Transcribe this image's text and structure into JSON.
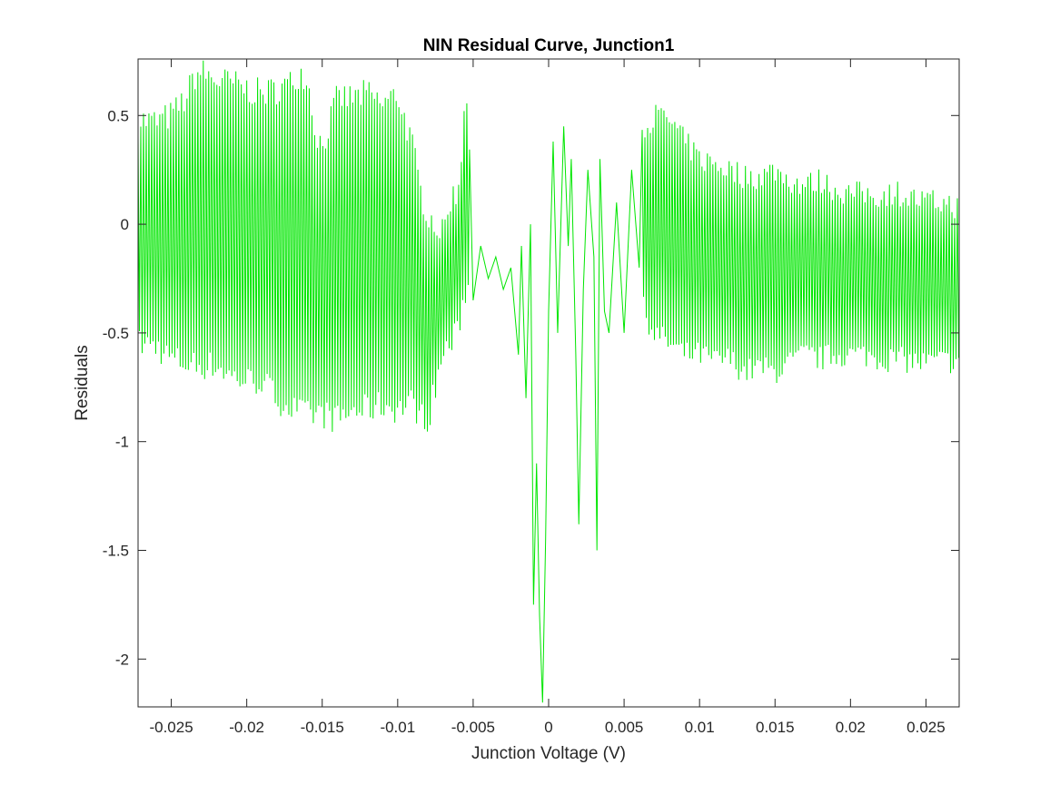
{
  "chart_data": {
    "type": "line",
    "title": "NIN Residual Curve, Junction1",
    "xlabel": "Junction Voltage (V)",
    "ylabel": "Residuals",
    "xlim": [
      -0.0272,
      0.0272
    ],
    "ylim": [
      -2.22,
      0.76
    ],
    "xticks": [
      -0.025,
      -0.02,
      -0.015,
      -0.01,
      -0.005,
      0,
      0.005,
      0.01,
      0.015,
      0.02,
      0.025
    ],
    "xtick_labels": [
      "-0.025",
      "-0.02",
      "-0.015",
      "-0.01",
      "-0.005",
      "0",
      "0.005",
      "0.01",
      "0.015",
      "0.02",
      "0.025"
    ],
    "yticks": [
      0.5,
      0,
      -0.5,
      -1,
      -1.5,
      -2
    ],
    "ytick_labels": [
      "0.5",
      "0",
      "-0.5",
      "-1",
      "-1.5",
      "-2"
    ],
    "grid": false,
    "box": true,
    "series": [
      {
        "color": "#00e600",
        "upper_envelope": {
          "x": [
            -0.0272,
            -0.026,
            -0.025,
            -0.024,
            -0.0235,
            -0.023,
            -0.022,
            -0.021,
            -0.02,
            -0.019,
            -0.018,
            -0.017,
            -0.0165,
            -0.016,
            -0.0155,
            -0.015,
            -0.0145,
            -0.014,
            -0.013,
            -0.012,
            -0.011,
            -0.01,
            -0.009,
            -0.0085,
            -0.008,
            -0.0075,
            -0.007,
            -0.0065,
            -0.006,
            -0.0058,
            -0.0055,
            -0.005
          ],
          "y": [
            0.48,
            0.47,
            0.5,
            0.58,
            0.68,
            0.7,
            0.66,
            0.65,
            0.62,
            0.6,
            0.62,
            0.65,
            0.7,
            0.68,
            0.45,
            0.35,
            0.47,
            0.58,
            0.58,
            0.6,
            0.55,
            0.6,
            0.35,
            0.15,
            0.05,
            0.0,
            -0.05,
            0.12,
            0.15,
            0.3,
            0.7,
            0.0
          ]
        },
        "lower_envelope": {
          "x": [
            -0.0272,
            -0.026,
            -0.025,
            -0.024,
            -0.023,
            -0.022,
            -0.021,
            -0.02,
            -0.019,
            -0.018,
            -0.017,
            -0.016,
            -0.015,
            -0.014,
            -0.013,
            -0.012,
            -0.011,
            -0.01,
            -0.009,
            -0.0085,
            -0.008,
            -0.0075,
            -0.007,
            -0.0065,
            -0.006,
            -0.0058,
            -0.0055,
            -0.005
          ],
          "y": [
            -0.55,
            -0.56,
            -0.62,
            -0.64,
            -0.65,
            -0.65,
            -0.7,
            -0.72,
            -0.72,
            -0.8,
            -0.85,
            -0.88,
            -0.87,
            -0.9,
            -0.86,
            -0.85,
            -0.83,
            -0.85,
            -0.82,
            -0.88,
            -0.9,
            -0.75,
            -0.6,
            -0.55,
            -0.5,
            -0.4,
            -0.3,
            -0.3
          ]
        },
        "center": {
          "x": [
            -0.005,
            -0.0045,
            -0.004,
            -0.0035,
            -0.003,
            -0.0025,
            -0.002,
            -0.0018,
            -0.0015,
            -0.0012,
            -0.001,
            -0.0008,
            -0.0006,
            -0.0004,
            -0.0002,
            0.0,
            0.0003,
            0.0006,
            0.001,
            0.0013,
            0.0015,
            0.0018,
            0.002,
            0.0023,
            0.0026,
            0.003,
            0.0032,
            0.0034,
            0.0037,
            0.004,
            0.0045,
            0.005,
            0.0055,
            0.006
          ],
          "y": [
            -0.35,
            -0.1,
            -0.25,
            -0.15,
            -0.3,
            -0.2,
            -0.6,
            -0.1,
            -0.8,
            0.0,
            -1.75,
            -1.1,
            -1.8,
            -2.2,
            -1.45,
            -0.4,
            0.38,
            -0.5,
            0.45,
            -0.1,
            0.3,
            -0.6,
            -1.38,
            -0.3,
            0.25,
            -0.15,
            -1.5,
            0.3,
            -0.4,
            -0.5,
            0.1,
            -0.5,
            0.25,
            -0.2
          ]
        },
        "decay_upper": {
          "x": [
            0.006,
            0.007,
            0.008,
            0.009,
            0.01,
            0.011,
            0.012,
            0.013,
            0.014,
            0.015,
            0.016,
            0.017,
            0.018,
            0.019,
            0.02,
            0.021,
            0.022,
            0.023,
            0.024,
            0.025,
            0.026,
            0.0272
          ],
          "y": [
            0.42,
            0.5,
            0.48,
            0.38,
            0.3,
            0.28,
            0.25,
            0.22,
            0.22,
            0.25,
            0.2,
            0.18,
            0.2,
            0.16,
            0.14,
            0.14,
            0.13,
            0.15,
            0.12,
            0.1,
            0.1,
            0.08
          ]
        },
        "decay_lower": {
          "x": [
            0.006,
            0.007,
            0.008,
            0.009,
            0.01,
            0.011,
            0.012,
            0.013,
            0.014,
            0.015,
            0.016,
            0.017,
            0.018,
            0.019,
            0.02,
            0.021,
            0.022,
            0.023,
            0.024,
            0.025,
            0.026,
            0.0272
          ],
          "y": [
            -0.35,
            -0.5,
            -0.55,
            -0.6,
            -0.6,
            -0.63,
            -0.62,
            -0.68,
            -0.66,
            -0.68,
            -0.64,
            -0.6,
            -0.62,
            -0.6,
            -0.6,
            -0.6,
            -0.62,
            -0.62,
            -0.63,
            -0.64,
            -0.63,
            -0.63
          ]
        }
      }
    ]
  }
}
